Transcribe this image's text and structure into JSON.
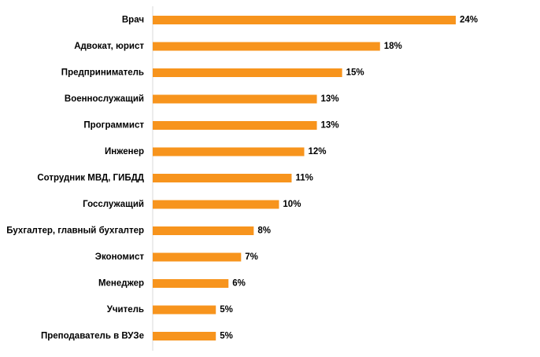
{
  "chart_data": {
    "type": "bar",
    "orientation": "horizontal",
    "categories": [
      "Врач",
      "Адвокат, юрист",
      "Предприниматель",
      "Военнослужащий",
      "Программист",
      "Инженер",
      "Сотрудник МВД, ГИБДД",
      "Госслужащий",
      "Бухгалтер, главный бухгалтер",
      "Экономист",
      "Менеджер",
      "Учитель",
      "Преподаватель в ВУЗе"
    ],
    "values": [
      24,
      18,
      15,
      13,
      13,
      12,
      11,
      10,
      8,
      7,
      6,
      5,
      5
    ],
    "value_labels": [
      "24%",
      "18%",
      "15%",
      "13%",
      "13%",
      "12%",
      "11%",
      "10%",
      "8%",
      "7%",
      "6%",
      "5%",
      "5%"
    ],
    "unit": "%",
    "xlim": [
      0,
      24
    ],
    "grid": false,
    "legend": "none",
    "bar_color": "#F7941D",
    "axis_color": "#D9D9D9"
  }
}
